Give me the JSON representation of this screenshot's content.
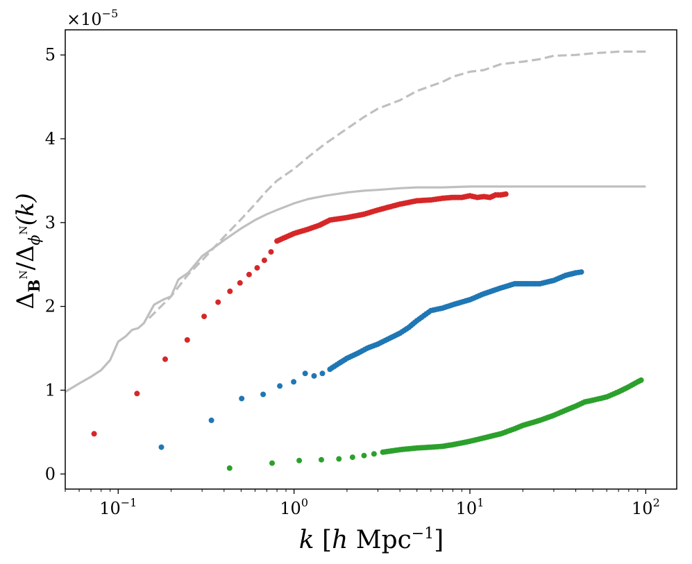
{
  "chart_data": {
    "type": "scatter",
    "title": "",
    "xlabel": {
      "k": "k",
      "bracket_open": "[",
      "h": "h",
      "mpc": "Mpc",
      "exp": "−1",
      "bracket_close": "]"
    },
    "ylabel": {
      "delta1": "Δ",
      "sub1": "B",
      "sup1": "N",
      "slash": "/",
      "delta2": "Δ",
      "sub2": "ϕ",
      "sup2": "N",
      "arg": "(k)"
    },
    "xscale": "log",
    "xlim": [
      0.05,
      150
    ],
    "ylim": [
      -0.18,
      5.3
    ],
    "y_multiplier": {
      "base": "×10",
      "exp": "−5"
    },
    "xticks": [
      {
        "value": 0.1,
        "base": "10",
        "exp": "−1"
      },
      {
        "value": 1,
        "base": "10",
        "exp": "0"
      },
      {
        "value": 10,
        "base": "10",
        "exp": "1"
      },
      {
        "value": 100,
        "base": "10",
        "exp": "2"
      }
    ],
    "yticks": [
      {
        "value": 0,
        "label": "0"
      },
      {
        "value": 1,
        "label": "1"
      },
      {
        "value": 2,
        "label": "2"
      },
      {
        "value": 3,
        "label": "3"
      },
      {
        "value": 4,
        "label": "4"
      },
      {
        "value": 5,
        "label": "5"
      }
    ],
    "lines": [
      {
        "name": "theory-solid",
        "color": "#bfbfbf",
        "style": "solid",
        "x": [
          0.05,
          0.06,
          0.07,
          0.08,
          0.09,
          0.1,
          0.11,
          0.12,
          0.13,
          0.14,
          0.16,
          0.18,
          0.2,
          0.22,
          0.25,
          0.3,
          0.35,
          0.4,
          0.5,
          0.6,
          0.7,
          0.8,
          1.0,
          1.2,
          1.5,
          2,
          2.5,
          3,
          4,
          5,
          7,
          10,
          15,
          20,
          30,
          50,
          100
        ],
        "y": [
          0.98,
          1.08,
          1.16,
          1.24,
          1.36,
          1.58,
          1.64,
          1.72,
          1.74,
          1.8,
          2.02,
          2.08,
          2.12,
          2.32,
          2.4,
          2.6,
          2.7,
          2.79,
          2.93,
          3.03,
          3.1,
          3.15,
          3.23,
          3.28,
          3.32,
          3.36,
          3.38,
          3.39,
          3.41,
          3.42,
          3.42,
          3.43,
          3.43,
          3.43,
          3.43,
          3.43,
          3.43
        ]
      },
      {
        "name": "theory-dashed",
        "color": "#bfbfbf",
        "style": "dashed",
        "x": [
          0.15,
          0.2,
          0.25,
          0.3,
          0.4,
          0.5,
          0.6,
          0.7,
          0.8,
          1.0,
          1.2,
          1.5,
          2,
          2.5,
          3,
          4,
          5,
          6,
          7,
          8,
          10,
          12,
          15,
          20,
          25,
          30,
          40,
          50,
          60,
          70,
          80,
          100
        ],
        "y": [
          1.86,
          2.12,
          2.38,
          2.55,
          2.83,
          3.04,
          3.22,
          3.38,
          3.5,
          3.64,
          3.78,
          3.94,
          4.12,
          4.26,
          4.36,
          4.46,
          4.57,
          4.63,
          4.68,
          4.74,
          4.8,
          4.82,
          4.89,
          4.92,
          4.95,
          4.99,
          5.0,
          5.02,
          5.03,
          5.04,
          5.04,
          5.04
        ]
      }
    ],
    "series": [
      {
        "name": "red",
        "color": "#d62728",
        "x": [
          0.073,
          0.128,
          0.185,
          0.247,
          0.308,
          0.37,
          0.432,
          0.493,
          0.555,
          0.617,
          0.678,
          0.74
        ],
        "y": [
          0.48,
          0.96,
          1.37,
          1.6,
          1.88,
          2.05,
          2.18,
          2.28,
          2.38,
          2.46,
          2.55,
          2.65
        ],
        "curve_x": [
          0.8,
          1.0,
          1.2,
          1.4,
          1.6,
          2,
          2.5,
          3,
          4,
          5,
          6,
          7,
          8,
          9,
          10,
          11,
          12,
          13,
          14,
          15,
          16
        ],
        "curve_y": [
          2.78,
          2.87,
          2.92,
          2.97,
          3.03,
          3.06,
          3.1,
          3.15,
          3.22,
          3.26,
          3.27,
          3.29,
          3.3,
          3.3,
          3.32,
          3.3,
          3.31,
          3.3,
          3.33,
          3.33,
          3.34
        ]
      },
      {
        "name": "blue",
        "color": "#1f77b4",
        "x": [
          0.176,
          0.339,
          0.504,
          0.667,
          0.83,
          0.995,
          1.157,
          1.3,
          1.45
        ],
        "y": [
          0.32,
          0.64,
          0.9,
          0.95,
          1.05,
          1.1,
          1.2,
          1.17,
          1.2
        ],
        "curve_x": [
          1.6,
          1.8,
          2,
          2.3,
          2.6,
          3,
          3.5,
          4,
          4.5,
          5,
          6,
          7,
          8,
          10,
          12,
          15,
          18,
          20,
          25,
          30,
          35,
          40,
          43
        ],
        "curve_y": [
          1.25,
          1.32,
          1.38,
          1.44,
          1.5,
          1.55,
          1.62,
          1.68,
          1.75,
          1.83,
          1.95,
          1.98,
          2.02,
          2.08,
          2.15,
          2.22,
          2.27,
          2.27,
          2.27,
          2.31,
          2.37,
          2.4,
          2.41
        ]
      },
      {
        "name": "green",
        "color": "#2ca02c",
        "x": [
          0.43,
          0.75,
          1.07,
          1.43,
          1.8,
          2.15,
          2.5,
          2.85
        ],
        "y": [
          0.07,
          0.13,
          0.16,
          0.17,
          0.18,
          0.2,
          0.22,
          0.24
        ],
        "curve_x": [
          3.2,
          4,
          5,
          6,
          7,
          8,
          10,
          12,
          15,
          18,
          20,
          25,
          30,
          35,
          40,
          45,
          50,
          55,
          60,
          70,
          80,
          90,
          94
        ],
        "curve_y": [
          0.26,
          0.29,
          0.31,
          0.32,
          0.33,
          0.35,
          0.39,
          0.43,
          0.48,
          0.54,
          0.58,
          0.64,
          0.7,
          0.76,
          0.81,
          0.86,
          0.88,
          0.9,
          0.92,
          0.98,
          1.04,
          1.1,
          1.12
        ]
      }
    ]
  }
}
